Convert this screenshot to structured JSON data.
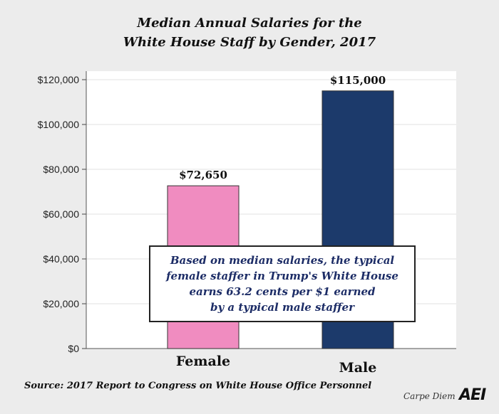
{
  "title_lines": [
    "Median Annual Salaries for the",
    "White House Staff by Gender, 2017"
  ],
  "chart_data": {
    "type": "bar",
    "title": "Median Annual Salaries for the White House Staff by Gender, 2017",
    "categories": [
      "Female",
      "Male"
    ],
    "values": [
      72650,
      115000
    ],
    "data_labels": [
      "$72,650",
      "$115,000"
    ],
    "colors": [
      "#f08cc0",
      "#1c3a6b"
    ],
    "y_ticks": [
      0,
      20000,
      40000,
      60000,
      80000,
      100000,
      120000
    ],
    "y_tick_labels": [
      "$0",
      "$20,000",
      "$40,000",
      "$60,000",
      "$80,000",
      "$100,000",
      "$120,000"
    ],
    "ylim": [
      0,
      120000
    ],
    "xlabel": "",
    "ylabel": "",
    "grid": true
  },
  "callout": {
    "lines": [
      "Based on median salaries, the typical",
      "female staffer in Trump's White House",
      "earns 63.2 cents per $1 earned",
      "by a typical male staffer"
    ]
  },
  "source": "Source: 2017 Report to Congress on White House Office Personnel",
  "brand": "Carpe Diem",
  "logo": "AEI"
}
